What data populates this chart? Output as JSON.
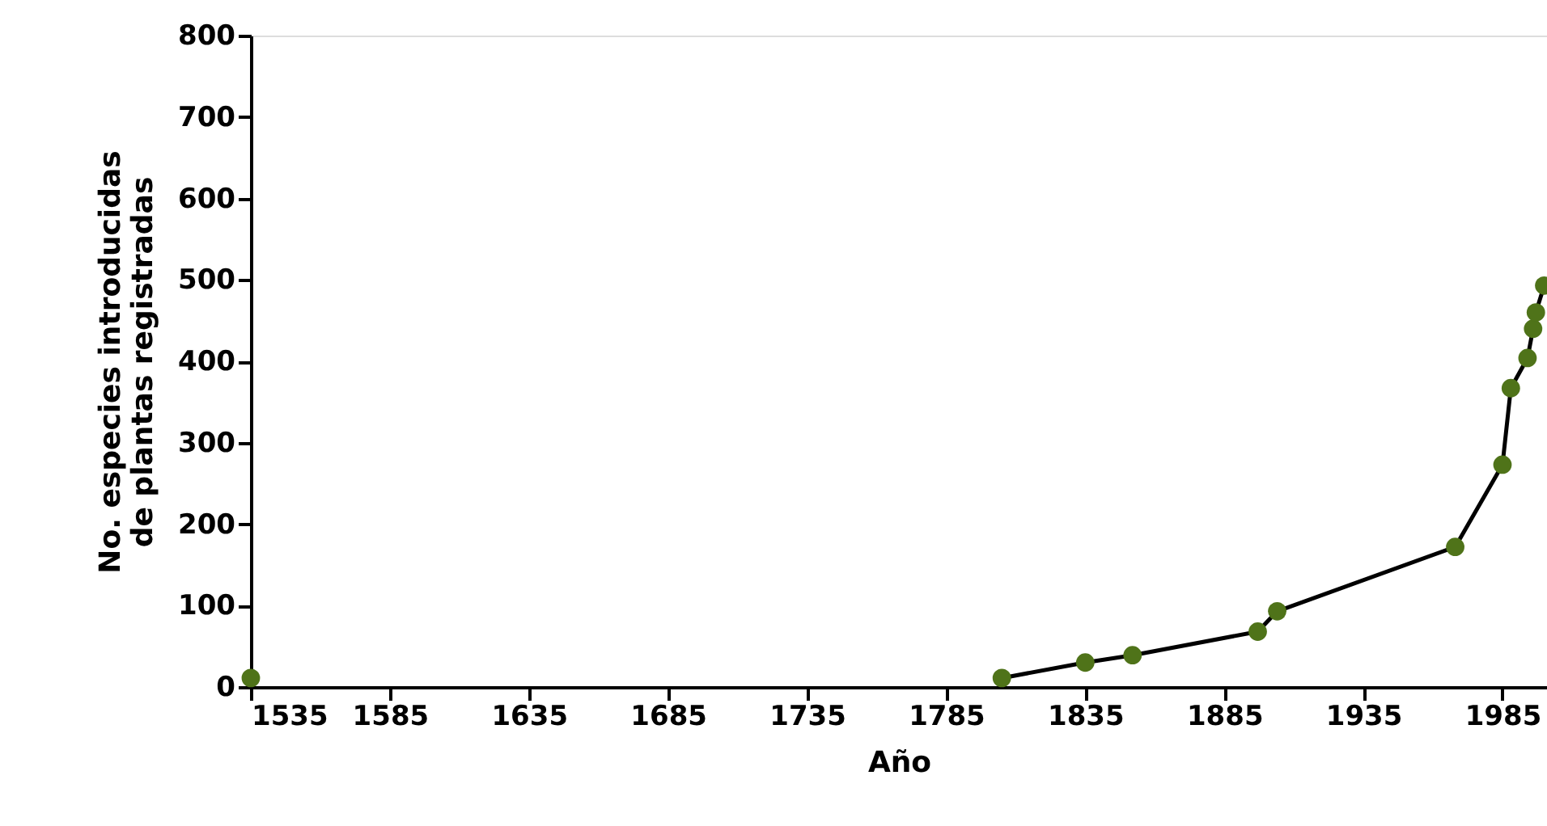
{
  "chart_data": {
    "type": "scatter",
    "xlabel": "Año",
    "ylabel": "No. especies introducidas de plantas registradas",
    "xlim": [
      1535,
      2001
    ],
    "xticks": [
      1535,
      1585,
      1635,
      1685,
      1735,
      1785,
      1835,
      1885,
      1935,
      1985
    ],
    "ylim": [
      0,
      800
    ],
    "yticks": [
      0,
      100,
      200,
      300,
      400,
      500,
      600,
      700,
      800
    ],
    "grid": false,
    "series": [
      {
        "type": "line",
        "color": "#000000",
        "marker": "none",
        "line_style": "solid",
        "x": [
          1805,
          1835,
          1852,
          1897,
          1904,
          1968,
          1985,
          1988,
          1994,
          1996,
          1997,
          2000
        ],
        "values": [
          11,
          30,
          39,
          68,
          93,
          172,
          273,
          367,
          404,
          440,
          460,
          493
        ]
      },
      {
        "type": "scatter",
        "color": "#4f7319",
        "marker": "circle",
        "x": [
          1535,
          1805,
          1835,
          1852,
          1897,
          1904,
          1968,
          1985,
          1988,
          1994,
          1996,
          1997,
          2000
        ],
        "values": [
          11,
          11,
          30,
          39,
          68,
          93,
          172,
          273,
          367,
          404,
          440,
          460,
          493
        ]
      }
    ]
  }
}
